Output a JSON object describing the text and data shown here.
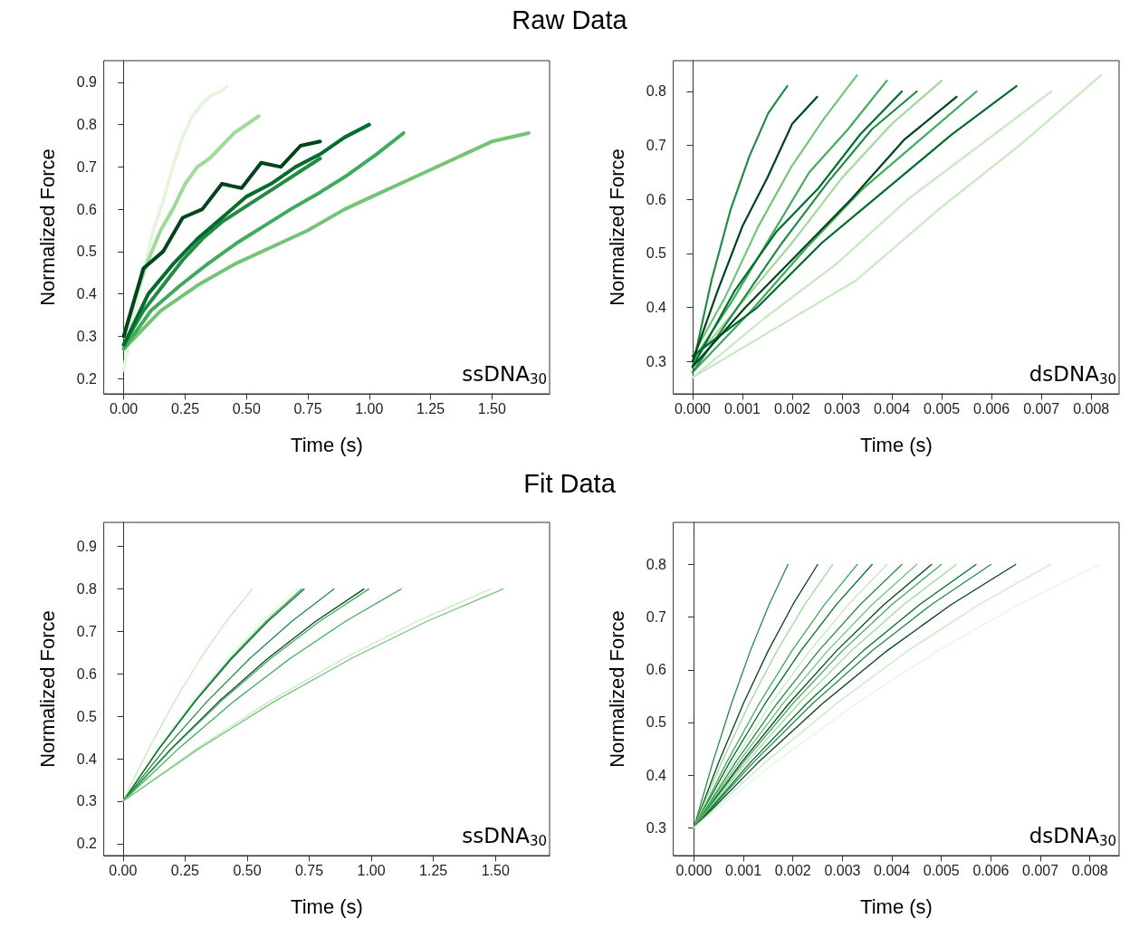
{
  "chart_data": [
    {
      "type": "line",
      "title": "Raw Data",
      "xlabel": "Time (s)",
      "ylabel": "Normalized Force",
      "annotations": [
        "ssDNA$_{30}$"
      ],
      "xlim": [
        -0.08,
        1.735
      ],
      "ylim": [
        0.164,
        0.951
      ],
      "xticks": [
        {
          "value": 0,
          "label": "0.00"
        },
        {
          "value": 0.25,
          "label": "0.25"
        },
        {
          "value": 0.5,
          "label": "0.50"
        },
        {
          "value": 0.75,
          "label": "0.75"
        },
        {
          "value": 1,
          "label": "1.00"
        },
        {
          "value": 1.25,
          "label": "1.25"
        },
        {
          "value": 1.5,
          "label": "1.50"
        }
      ],
      "yticks": [
        0.2,
        0.3,
        0.4,
        0.5,
        0.6,
        0.7,
        0.8,
        0.9
      ],
      "series": [
        {
          "color": "#e5f5e0",
          "x": [
            0,
            0.04,
            0.08,
            0.12,
            0.16,
            0.2,
            0.24,
            0.28,
            0.32,
            0.36,
            0.4,
            0.42
          ],
          "values": [
            0.22,
            0.35,
            0.45,
            0.55,
            0.62,
            0.7,
            0.77,
            0.82,
            0.85,
            0.87,
            0.88,
            0.89
          ]
        },
        {
          "color": "#a1d99b",
          "x": [
            0,
            0.05,
            0.1,
            0.15,
            0.2,
            0.25,
            0.3,
            0.35,
            0.4,
            0.45,
            0.5,
            0.55
          ],
          "values": [
            0.3,
            0.4,
            0.48,
            0.55,
            0.6,
            0.66,
            0.7,
            0.72,
            0.75,
            0.78,
            0.8,
            0.82
          ]
        },
        {
          "color": "#74c476",
          "x": [
            0,
            0.15,
            0.3,
            0.45,
            0.6,
            0.75,
            0.9,
            1.05,
            1.2,
            1.35,
            1.5,
            1.65
          ],
          "values": [
            0.27,
            0.36,
            0.42,
            0.47,
            0.51,
            0.55,
            0.6,
            0.64,
            0.68,
            0.72,
            0.76,
            0.78
          ]
        },
        {
          "color": "#41ab5d",
          "x": [
            0,
            0.11,
            0.23,
            0.34,
            0.46,
            0.57,
            0.68,
            0.8,
            0.91,
            1.03,
            1.14
          ],
          "values": [
            0.27,
            0.36,
            0.42,
            0.47,
            0.52,
            0.56,
            0.6,
            0.64,
            0.68,
            0.73,
            0.78
          ]
        },
        {
          "color": "#238b45",
          "x": [
            0,
            0.08,
            0.16,
            0.24,
            0.32,
            0.4,
            0.48,
            0.56,
            0.64,
            0.72,
            0.8
          ],
          "values": [
            0.28,
            0.36,
            0.42,
            0.48,
            0.53,
            0.57,
            0.6,
            0.63,
            0.66,
            0.69,
            0.72
          ]
        },
        {
          "color": "#006d2c",
          "x": [
            0,
            0.1,
            0.2,
            0.3,
            0.4,
            0.5,
            0.6,
            0.7,
            0.8,
            0.9,
            1.0
          ],
          "values": [
            0.28,
            0.4,
            0.47,
            0.53,
            0.58,
            0.63,
            0.66,
            0.7,
            0.73,
            0.77,
            0.8
          ]
        },
        {
          "color": "#00441b",
          "x": [
            0,
            0.08,
            0.16,
            0.24,
            0.32,
            0.4,
            0.48,
            0.56,
            0.64,
            0.72,
            0.8
          ],
          "values": [
            0.3,
            0.46,
            0.5,
            0.58,
            0.6,
            0.66,
            0.65,
            0.71,
            0.7,
            0.75,
            0.76
          ]
        }
      ]
    },
    {
      "type": "line",
      "xlabel": "Time (s)",
      "ylabel": "Normalized Force",
      "annotations": [
        "dsDNA$_{30}$"
      ],
      "xlim": [
        -0.00038,
        0.00856
      ],
      "ylim": [
        0.24,
        0.857
      ],
      "xticks": [
        {
          "value": 0,
          "label": "0.000"
        },
        0.001,
        0.002,
        0.003,
        0.004,
        0.005,
        0.006,
        0.007,
        0.008
      ],
      "yticks": [
        0.3,
        0.4,
        0.5,
        0.6,
        0.7,
        0.8
      ],
      "series": [
        {
          "color": "#c7e9c0",
          "x": [
            0,
            0.00164,
            0.00328,
            0.00492,
            0.00656,
            0.0082
          ],
          "values": [
            0.27,
            0.36,
            0.45,
            0.58,
            0.7,
            0.83
          ]
        },
        {
          "color": "#c7e9c0",
          "x": [
            0,
            0.00144,
            0.00288,
            0.00432,
            0.00576,
            0.0072
          ],
          "values": [
            0.27,
            0.38,
            0.48,
            0.6,
            0.7,
            0.8
          ]
        },
        {
          "color": "#a1d99b",
          "x": [
            0,
            0.001,
            0.002,
            0.003,
            0.004,
            0.005
          ],
          "values": [
            0.3,
            0.41,
            0.52,
            0.64,
            0.74,
            0.82
          ]
        },
        {
          "color": "#74c476",
          "x": [
            0,
            0.00066,
            0.00132,
            0.00198,
            0.00264,
            0.0033
          ],
          "values": [
            0.31,
            0.42,
            0.55,
            0.66,
            0.75,
            0.83
          ]
        },
        {
          "color": "#41ab5d",
          "x": [
            0,
            0.00078,
            0.00156,
            0.00234,
            0.00312,
            0.0039
          ],
          "values": [
            0.3,
            0.41,
            0.53,
            0.65,
            0.73,
            0.82
          ]
        },
        {
          "color": "#41ab5d",
          "x": [
            0,
            0.00114,
            0.00228,
            0.00342,
            0.00456,
            0.0057
          ],
          "values": [
            0.28,
            0.39,
            0.51,
            0.62,
            0.71,
            0.8
          ]
        },
        {
          "color": "#238b45",
          "x": [
            0,
            0.00038,
            0.00076,
            0.00114,
            0.00152,
            0.0019
          ],
          "values": [
            0.29,
            0.45,
            0.58,
            0.68,
            0.76,
            0.81
          ]
        },
        {
          "color": "#238b45",
          "x": [
            0,
            0.0009,
            0.0018,
            0.0027,
            0.0036,
            0.0045
          ],
          "values": [
            0.28,
            0.4,
            0.52,
            0.63,
            0.73,
            0.8
          ]
        },
        {
          "color": "#006d2c",
          "x": [
            0,
            0.00084,
            0.00168,
            0.00252,
            0.00336,
            0.0042
          ],
          "values": [
            0.29,
            0.43,
            0.54,
            0.62,
            0.72,
            0.8
          ]
        },
        {
          "color": "#006d2c",
          "x": [
            0,
            0.0013,
            0.0026,
            0.0039,
            0.0052,
            0.0065
          ],
          "values": [
            0.31,
            0.4,
            0.52,
            0.62,
            0.72,
            0.81
          ]
        },
        {
          "color": "#00441b",
          "x": [
            0,
            0.0005,
            0.001,
            0.0015,
            0.002,
            0.0025
          ],
          "values": [
            0.3,
            0.43,
            0.55,
            0.64,
            0.74,
            0.79
          ]
        },
        {
          "color": "#00441b",
          "x": [
            0,
            0.00106,
            0.00212,
            0.00318,
            0.00424,
            0.0053
          ],
          "values": [
            0.29,
            0.4,
            0.5,
            0.6,
            0.71,
            0.79
          ]
        }
      ]
    },
    {
      "type": "line",
      "title": "Fit Data",
      "xlabel": "Time (s)",
      "ylabel": "Normalized Force",
      "annotations": [
        "ssDNA$_{30}$"
      ],
      "xlim": [
        -0.076,
        1.718
      ],
      "ylim": [
        0.172,
        0.957
      ],
      "xticks": [
        {
          "value": 0,
          "label": "0.00"
        },
        {
          "value": 0.25,
          "label": "0.25"
        },
        {
          "value": 0.5,
          "label": "0.50"
        },
        {
          "value": 0.75,
          "label": "0.75"
        },
        {
          "value": 1,
          "label": "1.00"
        },
        {
          "value": 1.25,
          "label": "1.25"
        },
        {
          "value": 1.5,
          "label": "1.50"
        }
      ],
      "yticks": [
        0.2,
        0.3,
        0.4,
        0.5,
        0.6,
        0.7,
        0.8,
        0.9
      ],
      "series": [
        {
          "color": "#c7e9c0",
          "x": [
            0,
            0.104,
            0.208,
            0.312,
            0.416,
            0.52
          ],
          "values": [
            0.3,
            0.424,
            0.536,
            0.636,
            0.724,
            0.8
          ]
        },
        {
          "color": "#e5f5e0",
          "x": [
            0,
            0.14,
            0.28,
            0.42,
            0.56,
            0.7
          ],
          "values": [
            0.3,
            0.424,
            0.536,
            0.636,
            0.724,
            0.8
          ]
        },
        {
          "color": "#41ab5d",
          "x": [
            0,
            0.144,
            0.288,
            0.432,
            0.576,
            0.72
          ],
          "values": [
            0.3,
            0.424,
            0.536,
            0.636,
            0.724,
            0.8
          ]
        },
        {
          "color": "#006d2c",
          "x": [
            0,
            0.146,
            0.292,
            0.438,
            0.584,
            0.73
          ],
          "values": [
            0.3,
            0.424,
            0.536,
            0.636,
            0.724,
            0.8
          ]
        },
        {
          "color": "#238b45",
          "x": [
            0,
            0.17,
            0.34,
            0.51,
            0.68,
            0.85
          ],
          "values": [
            0.3,
            0.424,
            0.536,
            0.636,
            0.724,
            0.8
          ]
        },
        {
          "color": "#00441b",
          "x": [
            0,
            0.194,
            0.388,
            0.582,
            0.776,
            0.97
          ],
          "values": [
            0.3,
            0.424,
            0.536,
            0.636,
            0.724,
            0.8
          ]
        },
        {
          "color": "#41ab5d",
          "x": [
            0,
            0.198,
            0.396,
            0.594,
            0.792,
            0.99
          ],
          "values": [
            0.3,
            0.424,
            0.536,
            0.636,
            0.724,
            0.8
          ]
        },
        {
          "color": "#41ab5d",
          "x": [
            0,
            0.224,
            0.448,
            0.672,
            0.896,
            1.12
          ],
          "values": [
            0.3,
            0.424,
            0.536,
            0.636,
            0.724,
            0.8
          ]
        },
        {
          "color": "#c7e9c0",
          "x": [
            0,
            0.296,
            0.592,
            0.888,
            1.184,
            1.48
          ],
          "values": [
            0.3,
            0.424,
            0.536,
            0.636,
            0.724,
            0.8
          ]
        },
        {
          "color": "#74c476",
          "x": [
            0,
            0.306,
            0.612,
            0.918,
            1.224,
            1.53
          ],
          "values": [
            0.3,
            0.424,
            0.536,
            0.636,
            0.724,
            0.8
          ]
        }
      ]
    },
    {
      "type": "line",
      "xlabel": "Time (s)",
      "ylabel": "Normalized Force",
      "annotations": [
        "dsDNA$_{30}$"
      ],
      "xlim": [
        -0.00041,
        0.00859
      ],
      "ylim": [
        0.247,
        0.88
      ],
      "xticks": [
        {
          "value": 0,
          "label": "0.000"
        },
        0.001,
        0.002,
        0.003,
        0.004,
        0.005,
        0.006,
        0.007,
        0.008
      ],
      "yticks": [
        0.3,
        0.4,
        0.5,
        0.6,
        0.7,
        0.8
      ],
      "series": [
        {
          "color": "#238b45",
          "x": [
            0,
            0.00038,
            0.00076,
            0.00114,
            0.00152,
            0.0019
          ],
          "values": [
            0.3,
            0.424,
            0.536,
            0.636,
            0.724,
            0.8
          ]
        },
        {
          "color": "#00441b",
          "x": [
            0,
            0.0005,
            0.001,
            0.0015,
            0.002,
            0.0025
          ],
          "values": [
            0.3,
            0.424,
            0.536,
            0.636,
            0.724,
            0.8
          ]
        },
        {
          "color": "#a1d99b",
          "x": [
            0,
            0.00056,
            0.00112,
            0.00168,
            0.00224,
            0.0028
          ],
          "values": [
            0.3,
            0.424,
            0.536,
            0.636,
            0.724,
            0.8
          ]
        },
        {
          "color": "#41ab5d",
          "x": [
            0,
            0.00066,
            0.00132,
            0.00198,
            0.00264,
            0.0033
          ],
          "values": [
            0.3,
            0.424,
            0.536,
            0.636,
            0.724,
            0.8
          ]
        },
        {
          "color": "#006d2c",
          "x": [
            0,
            0.00072,
            0.00144,
            0.00216,
            0.00288,
            0.0036
          ],
          "values": [
            0.3,
            0.424,
            0.536,
            0.636,
            0.724,
            0.8
          ]
        },
        {
          "color": "#c7e9c0",
          "x": [
            0,
            0.00078,
            0.00156,
            0.00234,
            0.00312,
            0.0039
          ],
          "values": [
            0.3,
            0.424,
            0.536,
            0.636,
            0.724,
            0.8
          ]
        },
        {
          "color": "#238b45",
          "x": [
            0,
            0.00084,
            0.00168,
            0.00252,
            0.00336,
            0.0042
          ],
          "values": [
            0.3,
            0.424,
            0.536,
            0.636,
            0.724,
            0.8
          ]
        },
        {
          "color": "#74c476",
          "x": [
            0,
            0.0009,
            0.0018,
            0.0027,
            0.0036,
            0.0045
          ],
          "values": [
            0.3,
            0.424,
            0.536,
            0.636,
            0.724,
            0.8
          ]
        },
        {
          "color": "#00441b",
          "x": [
            0,
            0.00096,
            0.00192,
            0.00288,
            0.00384,
            0.0048
          ],
          "values": [
            0.3,
            0.424,
            0.536,
            0.636,
            0.724,
            0.8
          ]
        },
        {
          "color": "#41ab5d",
          "x": [
            0,
            0.001,
            0.002,
            0.003,
            0.004,
            0.005
          ],
          "values": [
            0.3,
            0.424,
            0.536,
            0.636,
            0.724,
            0.8
          ]
        },
        {
          "color": "#a1d99b",
          "x": [
            0,
            0.00106,
            0.00212,
            0.00318,
            0.00424,
            0.0053
          ],
          "values": [
            0.3,
            0.424,
            0.536,
            0.636,
            0.724,
            0.8
          ]
        },
        {
          "color": "#006d2c",
          "x": [
            0,
            0.00114,
            0.00228,
            0.00342,
            0.00456,
            0.0057
          ],
          "values": [
            0.3,
            0.424,
            0.536,
            0.636,
            0.724,
            0.8
          ]
        },
        {
          "color": "#238b45",
          "x": [
            0,
            0.0012,
            0.0024,
            0.0036,
            0.0048,
            0.006
          ],
          "values": [
            0.3,
            0.424,
            0.536,
            0.636,
            0.724,
            0.8
          ]
        },
        {
          "color": "#00441b",
          "x": [
            0,
            0.0013,
            0.0026,
            0.0039,
            0.0052,
            0.0065
          ],
          "values": [
            0.3,
            0.424,
            0.536,
            0.636,
            0.724,
            0.8
          ]
        },
        {
          "color": "#c7e9c0",
          "x": [
            0,
            0.00144,
            0.00288,
            0.00432,
            0.00576,
            0.0072
          ],
          "values": [
            0.3,
            0.424,
            0.536,
            0.636,
            0.724,
            0.8
          ]
        },
        {
          "color": "#e5f5e0",
          "x": [
            0,
            0.00164,
            0.00328,
            0.00492,
            0.00656,
            0.0082
          ],
          "values": [
            0.3,
            0.424,
            0.536,
            0.636,
            0.724,
            0.8
          ]
        }
      ]
    }
  ]
}
